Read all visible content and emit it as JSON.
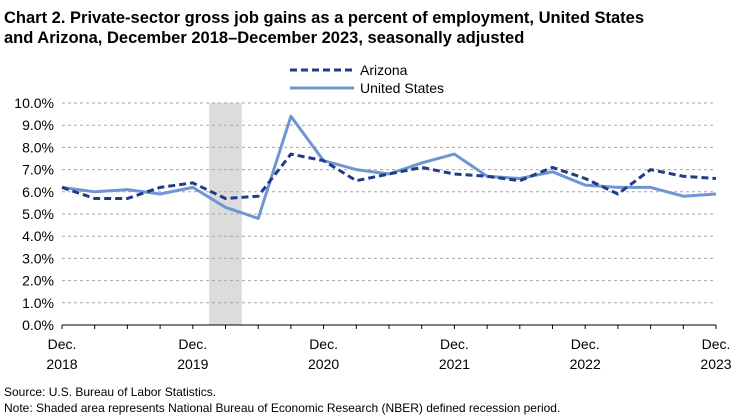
{
  "title": {
    "line1": "Chart 2. Private-sector gross job gains as a percent of employment, United States",
    "line2": "and Arizona, December 2018–December 2023, seasonally adjusted"
  },
  "footnotes": {
    "source": "Source: U.S. Bureau of Labor Statistics.",
    "note": "Note: Shaded area represents National Bureau of Economic Research (NBER) defined recession period."
  },
  "colors": {
    "arizona": "#1f3c88",
    "united_states": "#6f96d1",
    "recession": "#dcdcdc",
    "grid": "#a6a6a6"
  },
  "chart_data": {
    "type": "line",
    "title": "Chart 2. Private-sector gross job gains as a percent of employment, United States and Arizona, December 2018–December 2023, seasonally adjusted",
    "x": [
      "Dec. 2018",
      "Mar. 2019",
      "Jun. 2019",
      "Sep. 2019",
      "Dec. 2019",
      "Mar. 2020",
      "Jun. 2020",
      "Sep. 2020",
      "Dec. 2020",
      "Mar. 2021",
      "Jun. 2021",
      "Sep. 2021",
      "Dec. 2021",
      "Mar. 2022",
      "Jun. 2022",
      "Sep. 2022",
      "Dec. 2022",
      "Mar. 2023",
      "Jun. 2023",
      "Sep. 2023",
      "Dec. 2023"
    ],
    "x_tick_labels": [
      {
        "index": 0,
        "line1": "Dec.",
        "line2": "2018"
      },
      {
        "index": 4,
        "line1": "Dec.",
        "line2": "2019"
      },
      {
        "index": 8,
        "line1": "Dec.",
        "line2": "2020"
      },
      {
        "index": 12,
        "line1": "Dec.",
        "line2": "2021"
      },
      {
        "index": 16,
        "line1": "Dec.",
        "line2": "2022"
      },
      {
        "index": 20,
        "line1": "Dec.",
        "line2": "2023"
      }
    ],
    "y_ticks": [
      "0.0%",
      "1.0%",
      "2.0%",
      "3.0%",
      "4.0%",
      "5.0%",
      "6.0%",
      "7.0%",
      "8.0%",
      "9.0%",
      "10.0%"
    ],
    "ylim": [
      0,
      10
    ],
    "series": [
      {
        "name": "Arizona",
        "style": "dashed",
        "values": [
          6.2,
          5.7,
          5.7,
          6.2,
          6.4,
          5.7,
          5.8,
          7.7,
          7.4,
          6.5,
          6.8,
          7.1,
          6.8,
          6.7,
          6.5,
          7.1,
          6.6,
          5.9,
          7.0,
          6.7,
          6.6
        ]
      },
      {
        "name": "United States",
        "style": "solid",
        "values": [
          6.2,
          6.0,
          6.1,
          5.9,
          6.2,
          5.3,
          4.8,
          9.4,
          7.4,
          7.0,
          6.8,
          7.3,
          7.7,
          6.7,
          6.6,
          6.9,
          6.3,
          6.2,
          6.2,
          5.8,
          5.9
        ]
      }
    ],
    "recession": {
      "start_index": 4.5,
      "end_index": 5.5
    },
    "legend": "top-center",
    "grid": "horizontal dashed"
  }
}
